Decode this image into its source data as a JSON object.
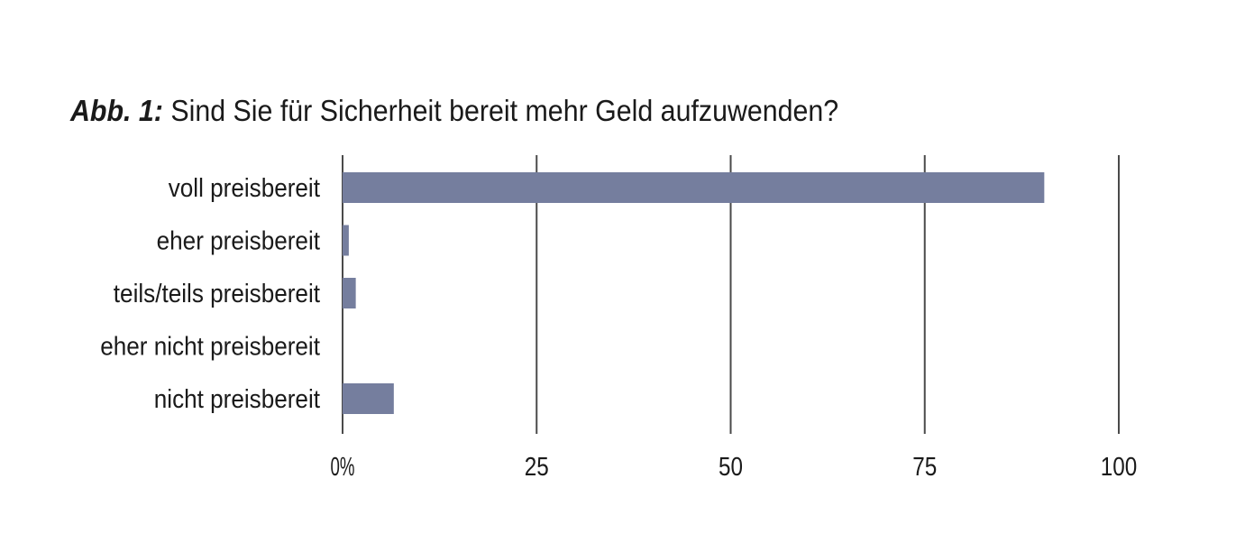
{
  "chart_data": {
    "type": "bar",
    "orientation": "horizontal",
    "title_prefix": "Abb. 1:",
    "title": "Sind Sie für Sicherheit bereit mehr Geld aufzuwenden?",
    "categories": [
      "voll preisbereit",
      "eher preisbereit",
      "teils/teils preisbereit",
      "eher nicht preisbereit",
      "nicht preisbereit"
    ],
    "values": [
      90.4,
      0.8,
      1.7,
      0,
      6.6
    ],
    "xlim": [
      0,
      100
    ],
    "xticks": [
      0,
      25,
      50,
      75,
      100
    ],
    "xtick_labels": [
      "0%",
      "25",
      "50",
      "75",
      "100"
    ],
    "grid": true,
    "legend": "none",
    "bar_color": "#757e9e",
    "grid_color": "#4a4a4a"
  }
}
